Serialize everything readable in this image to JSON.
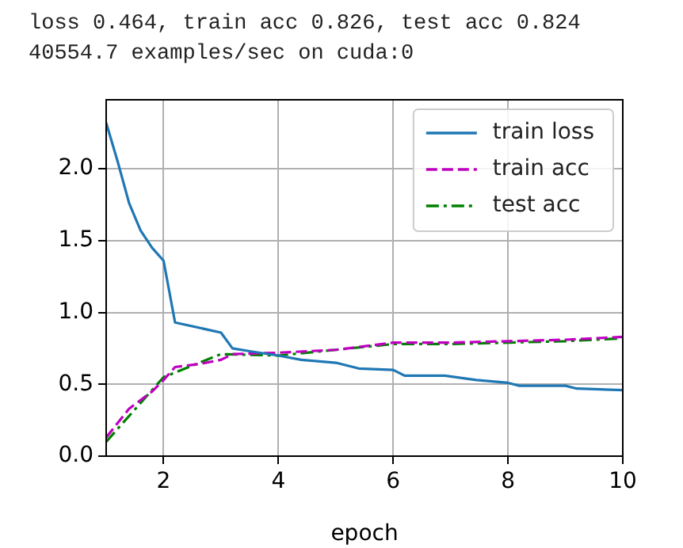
{
  "chart_data": {
    "type": "line",
    "title": "loss 0.464, train acc 0.826, test acc 0.824",
    "subtitle": "40554.7 examples/sec on cuda:0",
    "xlabel": "epoch",
    "xlim": [
      1,
      10
    ],
    "xticks": [
      2,
      4,
      6,
      8,
      10
    ],
    "ylim": [
      0,
      2.48
    ],
    "yticks": [
      {
        "value": 0,
        "label": "0.0"
      },
      {
        "value": 0.5,
        "label": "0.5"
      },
      {
        "value": 1,
        "label": "1.0"
      },
      {
        "value": 1.5,
        "label": "1.5"
      },
      {
        "value": 2,
        "label": "2.0"
      }
    ],
    "grid": true,
    "legend": "top right",
    "marker": "none",
    "series": [
      {
        "name": "train loss",
        "color": "#1f77b4",
        "line_style": "solid",
        "x": [
          1,
          1.2,
          1.4,
          1.6,
          1.8,
          2,
          2.2,
          3,
          3.2,
          3.5,
          4,
          4.4,
          5,
          5.4,
          6,
          6.2,
          6.9,
          7.45,
          8,
          8.2,
          9,
          9.2,
          10
        ],
        "values": [
          2.32,
          2.05,
          1.76,
          1.57,
          1.45,
          1.36,
          0.93,
          0.86,
          0.75,
          0.73,
          0.7,
          0.67,
          0.65,
          0.61,
          0.6,
          0.56,
          0.56,
          0.53,
          0.51,
          0.49,
          0.49,
          0.47,
          0.46
        ]
      },
      {
        "name": "train acc",
        "color": "#bf00bf",
        "line_style": "dashed",
        "x": [
          1,
          1.4,
          1.8,
          2,
          2.2,
          2.6,
          3,
          3.2,
          4,
          5,
          6,
          7,
          8,
          9,
          10
        ],
        "values": [
          0.13,
          0.33,
          0.45,
          0.53,
          0.62,
          0.64,
          0.67,
          0.71,
          0.72,
          0.74,
          0.79,
          0.79,
          0.8,
          0.81,
          0.83
        ]
      },
      {
        "name": "test acc",
        "color": "#008000",
        "line_style": "dashdot",
        "x": [
          1,
          2,
          3,
          4,
          5,
          6,
          7,
          8,
          9,
          10
        ],
        "values": [
          0.1,
          0.55,
          0.71,
          0.7,
          0.74,
          0.78,
          0.78,
          0.79,
          0.8,
          0.82
        ]
      }
    ]
  }
}
